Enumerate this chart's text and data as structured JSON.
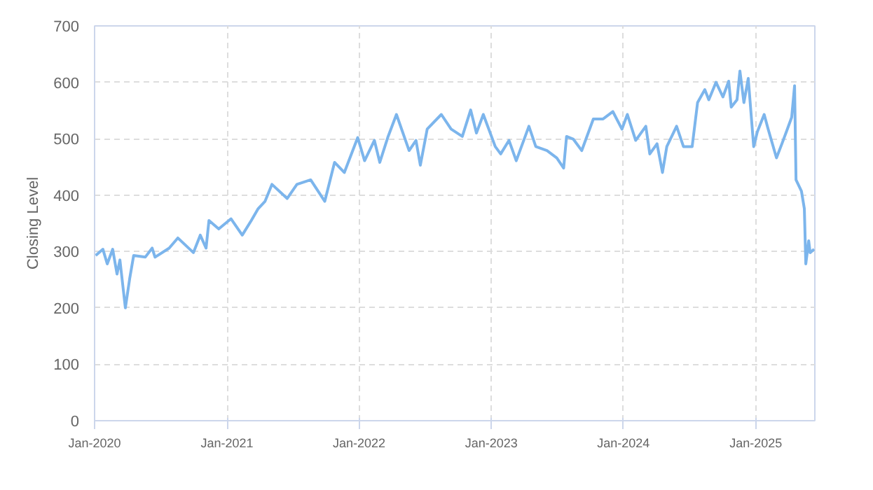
{
  "chart_data": {
    "type": "line",
    "ylabel": "Closing Level",
    "xlim": [
      "2020-01-01",
      "2025-06-13"
    ],
    "ylim": [
      0,
      700
    ],
    "xticks": [
      {
        "value": "2020-01",
        "label": "Jan-2020"
      },
      {
        "value": "2021-01",
        "label": "Jan-2021"
      },
      {
        "value": "2022-01",
        "label": "Jan-2022"
      },
      {
        "value": "2023-01",
        "label": "Jan-2023"
      },
      {
        "value": "2024-01",
        "label": "Jan-2024"
      },
      {
        "value": "2025-01",
        "label": "Jan-2025"
      }
    ],
    "yticks": [
      0,
      100,
      200,
      300,
      400,
      500,
      600,
      700
    ],
    "grid": true,
    "line_style": "solid",
    "series": [
      {
        "color": "#7cb5ec",
        "x": [
          "2020-01-04",
          "2020-01-24",
          "2020-02-05",
          "2020-02-20",
          "2020-03-03",
          "2020-03-11",
          "2020-03-26",
          "2020-04-07",
          "2020-04-18",
          "2020-05-20",
          "2020-06-08",
          "2020-06-16",
          "2020-07-25",
          "2020-08-18",
          "2020-09-30",
          "2020-10-19",
          "2020-11-04",
          "2020-11-12",
          "2020-12-09",
          "2021-01-12",
          "2021-02-12",
          "2021-03-09",
          "2021-03-28",
          "2021-04-16",
          "2021-05-05",
          "2021-06-16",
          "2021-07-13",
          "2021-08-20",
          "2021-09-28",
          "2021-10-25",
          "2021-11-21",
          "2021-12-28",
          "2022-01-16",
          "2022-02-12",
          "2022-02-27",
          "2022-03-22",
          "2022-04-14",
          "2022-05-19",
          "2022-06-07",
          "2022-06-19",
          "2022-07-08",
          "2022-08-16",
          "2022-09-12",
          "2022-10-13",
          "2022-11-05",
          "2022-11-21",
          "2022-12-10",
          "2023-01-12",
          "2023-01-27",
          "2023-02-19",
          "2023-03-11",
          "2023-04-15",
          "2023-05-04",
          "2023-06-04",
          "2023-07-01",
          "2023-07-20",
          "2023-07-28",
          "2023-08-16",
          "2023-09-08",
          "2023-10-10",
          "2023-11-06",
          "2023-12-03",
          "2023-12-28",
          "2024-01-12",
          "2024-02-04",
          "2024-03-03",
          "2024-03-14",
          "2024-04-03",
          "2024-04-18",
          "2024-04-30",
          "2024-05-27",
          "2024-06-15",
          "2024-07-09",
          "2024-07-24",
          "2024-08-13",
          "2024-08-24",
          "2024-09-13",
          "2024-10-02",
          "2024-10-18",
          "2024-10-25",
          "2024-11-10",
          "2024-11-18",
          "2024-11-29",
          "2024-12-11",
          "2024-12-26",
          "2025-01-05",
          "2025-01-24",
          "2025-02-04",
          "2025-02-27",
          "2025-03-14",
          "2025-03-29",
          "2025-04-10",
          "2025-04-18",
          "2025-04-22",
          "2025-05-07",
          "2025-05-15",
          "2025-05-19",
          "2025-05-27",
          "2025-05-31",
          "2025-06-11"
        ],
        "values": [
          293,
          304,
          278,
          304,
          260,
          285,
          200,
          252,
          293,
          290,
          306,
          290,
          306,
          324,
          298,
          329,
          306,
          355,
          340,
          358,
          329,
          355,
          376,
          389,
          419,
          394,
          419,
          427,
          389,
          458,
          440,
          502,
          461,
          497,
          458,
          504,
          543,
          479,
          497,
          453,
          517,
          543,
          517,
          504,
          551,
          510,
          543,
          486,
          473,
          497,
          461,
          522,
          486,
          479,
          466,
          448,
          504,
          499,
          479,
          535,
          535,
          548,
          517,
          543,
          497,
          522,
          473,
          491,
          440,
          486,
          522,
          486,
          486,
          564,
          587,
          569,
          600,
          574,
          602,
          556,
          569,
          620,
          564,
          607,
          486,
          512,
          543,
          517,
          466,
          491,
          517,
          538,
          594,
          427,
          407,
          376,
          278,
          319,
          298,
          304
        ]
      }
    ]
  }
}
